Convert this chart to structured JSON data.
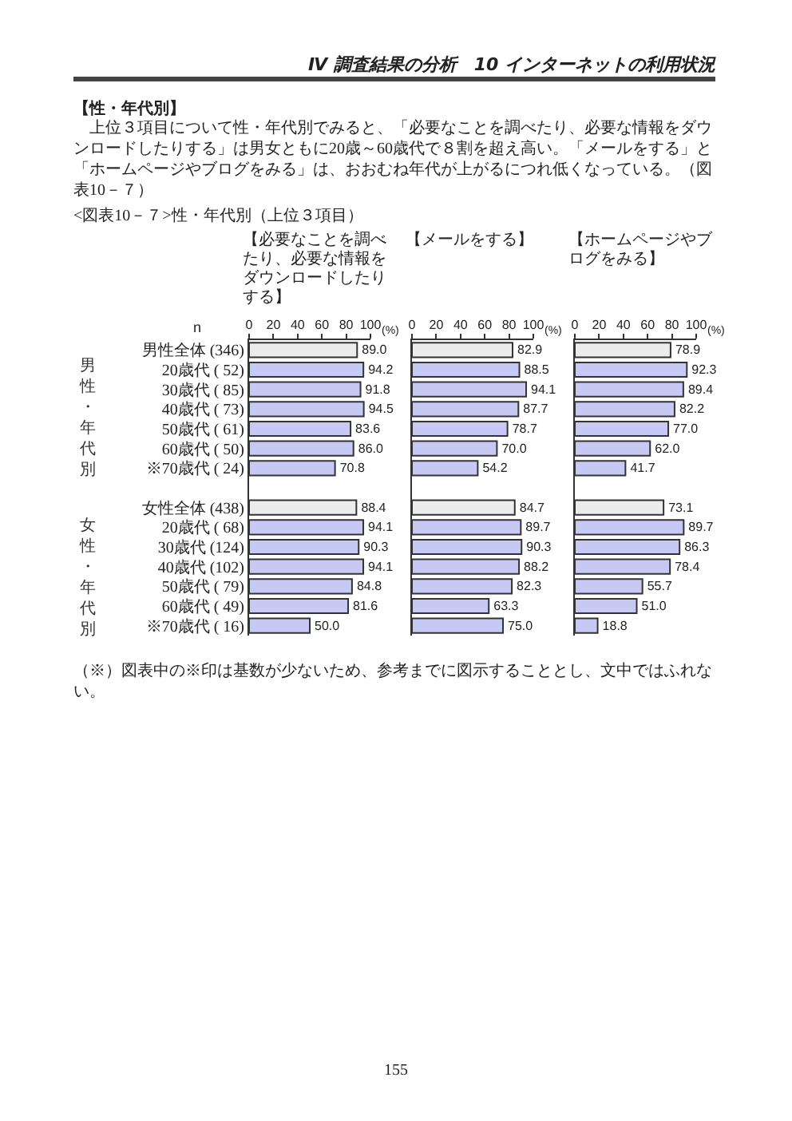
{
  "chart_data": [
    {
      "type": "bar",
      "orientation": "horizontal",
      "title": "【必要なことを調べたり、必要な情報をダウンロードしたりする】",
      "xlabel": "(%)",
      "xlim": [
        0,
        100
      ],
      "xticks": [
        0,
        20,
        40,
        60,
        80,
        100
      ],
      "categories": [
        "男性全体 (346)",
        "20歳代 ( 52)",
        "30歳代 ( 85)",
        "40歳代 ( 73)",
        "50歳代 ( 61)",
        "60歳代 ( 50)",
        "※70歳代 ( 24)",
        null,
        "女性全体 (438)",
        "20歳代 ( 68)",
        "30歳代 (124)",
        "40歳代 (102)",
        "50歳代 ( 79)",
        "60歳代 ( 49)",
        "※70歳代 ( 16)"
      ],
      "values": [
        89.0,
        94.2,
        91.8,
        94.5,
        83.6,
        86.0,
        70.8,
        null,
        88.4,
        94.1,
        90.3,
        94.1,
        84.8,
        81.6,
        50.0
      ],
      "value_labels": [
        "89.0",
        "94.2",
        "91.8",
        "94.5",
        "83.6",
        "86.0",
        "70.8",
        null,
        "88.4",
        "94.1",
        "90.3",
        "94.1",
        "84.8",
        "81.6",
        "50.0"
      ],
      "colors": [
        "#ececec",
        "#c8c8f5",
        "#c8c8f5",
        "#c8c8f5",
        "#c8c8f5",
        "#c8c8f5",
        "#c8c8f5",
        null,
        "#ececec",
        "#c8c8f5",
        "#c8c8f5",
        "#c8c8f5",
        "#c8c8f5",
        "#c8c8f5",
        "#c8c8f5"
      ],
      "annotations": [
        "Ⅳ 調査結果の分析　10 インターネットの利用状況",
        "【性・年代別】",
        "上位３項目について性・年代別でみると、「必要なことを調べたり、必要な情報をダウンロードしたりする」は男女ともに20歳～60歳代で８割を超え高い。「メールをする」と「ホームページやブログをみる」は、おおむね年代が上がるにつれ低くなっている。（図表10－７）",
        "<図表10－７>性・年代別（上位３項目）",
        "n",
        "男性・年代別",
        "女性・年代別",
        "（※）図表中の※印は基数が少ないため、参考までに図示することとし、文中ではふれない。",
        "155"
      ]
    },
    {
      "type": "bar",
      "orientation": "horizontal",
      "title": "【メールをする】",
      "xlabel": "(%)",
      "xlim": [
        0,
        100
      ],
      "xticks": [
        0,
        20,
        40,
        60,
        80,
        100
      ],
      "categories": [
        null,
        null,
        null,
        null,
        null,
        null,
        null,
        null,
        null,
        null,
        null,
        null,
        null,
        null,
        null
      ],
      "values": [
        82.9,
        88.5,
        94.1,
        87.7,
        78.7,
        70.0,
        54.2,
        null,
        84.7,
        89.7,
        90.3,
        88.2,
        82.3,
        63.3,
        75.0
      ],
      "value_labels": [
        "82.9",
        "88.5",
        "94.1",
        "87.7",
        "78.7",
        "70.0",
        "54.2",
        null,
        "84.7",
        "89.7",
        "90.3",
        "88.2",
        "82.3",
        "63.3",
        "75.0"
      ],
      "colors": [
        "#ececec",
        "#c8c8f5",
        "#c8c8f5",
        "#c8c8f5",
        "#c8c8f5",
        "#c8c8f5",
        "#c8c8f5",
        null,
        "#ececec",
        "#c8c8f5",
        "#c8c8f5",
        "#c8c8f5",
        "#c8c8f5",
        "#c8c8f5",
        "#c8c8f5"
      ]
    },
    {
      "type": "bar",
      "orientation": "horizontal",
      "title": "【ホームページやブログをみる】",
      "xlabel": "(%)",
      "xlim": [
        0,
        100
      ],
      "xticks": [
        0,
        20,
        40,
        60,
        80,
        100
      ],
      "categories": [
        null,
        null,
        null,
        null,
        null,
        null,
        null,
        null,
        null,
        null,
        null,
        null,
        null,
        null,
        null
      ],
      "values": [
        78.9,
        92.3,
        89.4,
        82.2,
        77.0,
        62.0,
        41.7,
        null,
        73.1,
        89.7,
        86.3,
        78.4,
        55.7,
        51.0,
        18.8
      ],
      "value_labels": [
        "78.9",
        "92.3",
        "89.4",
        "82.2",
        "77.0",
        "62.0",
        "41.7",
        null,
        "73.1",
        "89.7",
        "86.3",
        "78.4",
        "55.7",
        "51.0",
        "18.8"
      ],
      "colors": [
        "#ececec",
        "#c8c8f5",
        "#c8c8f5",
        "#c8c8f5",
        "#c8c8f5",
        "#c8c8f5",
        "#c8c8f5",
        null,
        "#ececec",
        "#c8c8f5",
        "#c8c8f5",
        "#c8c8f5",
        "#c8c8f5",
        "#c8c8f5",
        "#c8c8f5"
      ]
    }
  ]
}
